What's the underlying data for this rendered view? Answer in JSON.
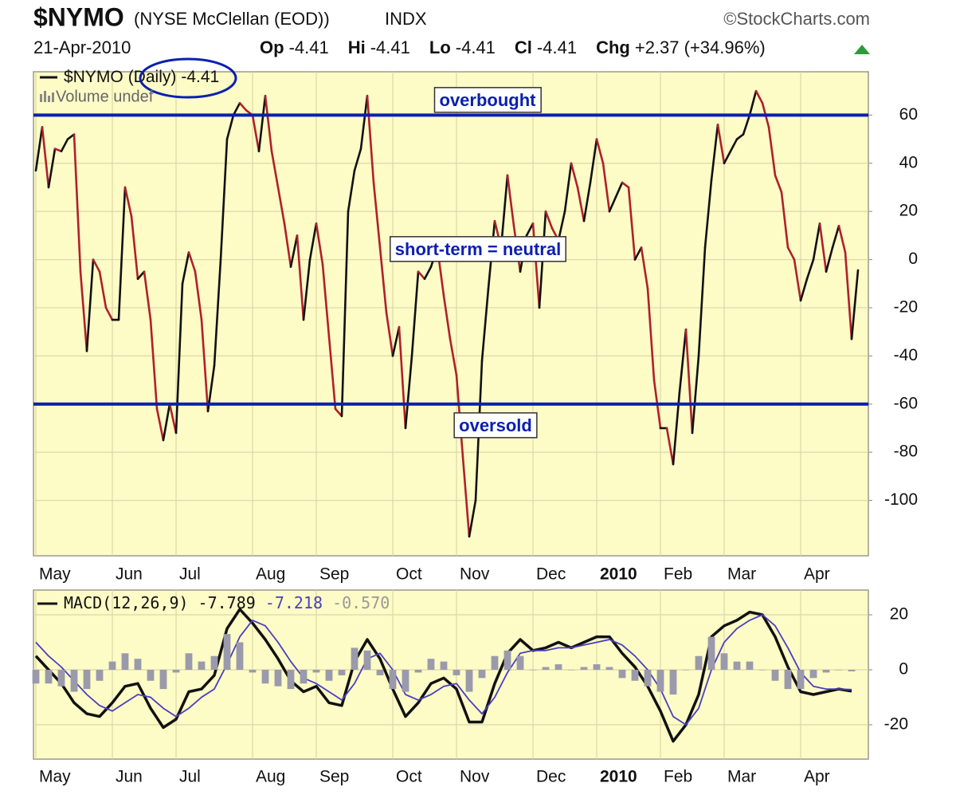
{
  "header": {
    "symbol": "$NYMO",
    "name": "(NYSE McClellan (EOD))",
    "exchange": "INDX",
    "source": "©StockCharts.com",
    "date": "21-Apr-2010",
    "quote": [
      {
        "label": "Op",
        "value": "-4.41"
      },
      {
        "label": "Hi",
        "value": "-4.41"
      },
      {
        "label": "Lo",
        "value": "-4.41"
      },
      {
        "label": "Cl",
        "value": "-4.41"
      },
      {
        "label": "Chg",
        "value": "+2.37 (+34.96%)"
      }
    ]
  },
  "chart_data": [
    {
      "type": "line",
      "categories": [
        "May",
        null,
        null,
        null,
        null,
        null,
        null,
        null,
        null,
        null,
        null,
        null,
        "Jun",
        null,
        null,
        null,
        null,
        null,
        null,
        null,
        null,
        null,
        "Jul",
        null,
        null,
        null,
        null,
        null,
        null,
        null,
        null,
        null,
        null,
        null,
        "Aug",
        null,
        null,
        null,
        null,
        null,
        null,
        null,
        null,
        null,
        "Sep",
        null,
        null,
        null,
        null,
        null,
        null,
        null,
        null,
        null,
        null,
        null,
        "Oct",
        null,
        null,
        null,
        null,
        null,
        null,
        null,
        null,
        null,
        "Nov",
        null,
        null,
        null,
        null,
        null,
        null,
        null,
        null,
        null,
        null,
        null,
        "Dec",
        null,
        null,
        null,
        null,
        null,
        null,
        null,
        null,
        null,
        "2010",
        null,
        null,
        null,
        null,
        null,
        null,
        null,
        null,
        null,
        "Feb",
        null,
        null,
        null,
        null,
        null,
        null,
        null,
        null,
        null,
        "Mar",
        null,
        null,
        null,
        null,
        null,
        null,
        null,
        null,
        null,
        null,
        null,
        "Apr",
        null,
        null,
        null,
        null,
        null,
        null,
        null,
        null,
        null
      ],
      "series": [
        {
          "name": "$NYMO",
          "period": "(Daily)",
          "up_color": "#111111",
          "down_color": "#b0202a",
          "values": [
            37,
            55,
            30,
            46,
            45,
            50,
            52,
            -5,
            -38,
            0,
            -5,
            -20,
            -25,
            -25,
            30,
            18,
            -8,
            -5,
            -25,
            -62,
            -75,
            -60,
            -72,
            -10,
            3,
            -5,
            -25,
            -63,
            -44,
            0,
            50,
            60,
            65,
            62,
            60,
            45,
            68,
            45,
            30,
            15,
            -3,
            10,
            -25,
            0,
            15,
            -2,
            -32,
            -62,
            -65,
            20,
            37,
            46,
            68,
            32,
            5,
            -22,
            -40,
            -28,
            -70,
            -40,
            -5,
            -8,
            -3,
            5,
            -15,
            -33,
            -48,
            -82,
            -115,
            -100,
            -42,
            -12,
            16,
            5,
            35,
            14,
            -5,
            10,
            15,
            -20,
            20,
            13,
            8,
            20,
            40,
            30,
            16,
            32,
            50,
            40,
            20,
            26,
            32,
            30,
            0,
            5,
            -12,
            -50,
            -70,
            -70,
            -85,
            -55,
            -29,
            -72,
            -40,
            5,
            33,
            56,
            40,
            45,
            50,
            52,
            60,
            70,
            65,
            55,
            35,
            28,
            5,
            0,
            -17,
            -8,
            0,
            15,
            -5,
            5,
            14,
            3,
            -33,
            -4.41
          ]
        }
      ],
      "volume_note": "Volume undef",
      "ylim": [
        -123,
        78
      ],
      "yticks": [
        -100,
        -80,
        -60,
        -40,
        -20,
        0,
        20,
        40,
        60
      ],
      "grid": true,
      "hlines": [
        {
          "value": 60,
          "color": "#0a1fb0"
        },
        {
          "value": -60,
          "color": "#0a1fb0"
        }
      ],
      "annotations": [
        {
          "text": "overbought"
        },
        {
          "text": "short-term = neutral"
        },
        {
          "text": "oversold"
        }
      ]
    },
    {
      "type": "line",
      "categories": [
        "May",
        null,
        null,
        null,
        null,
        null,
        "Jun",
        null,
        null,
        null,
        null,
        "Jul",
        null,
        null,
        null,
        null,
        null,
        "Aug",
        null,
        null,
        null,
        null,
        "Sep",
        null,
        null,
        null,
        null,
        null,
        "Oct",
        null,
        null,
        null,
        null,
        "Nov",
        null,
        null,
        null,
        null,
        null,
        "Dec",
        null,
        null,
        null,
        null,
        "2010",
        null,
        null,
        null,
        null,
        "Feb",
        null,
        null,
        null,
        null,
        "Mar",
        null,
        null,
        null,
        null,
        null,
        "Apr",
        null,
        null,
        null,
        null
      ],
      "series": [
        {
          "name": "MACD(12,26,9)",
          "style": "line",
          "color": "#111111",
          "width": 3.5,
          "values": [
            5,
            0,
            -5,
            -12,
            -16,
            -17,
            -12,
            -6,
            -5,
            -14,
            -21,
            -18,
            -8,
            -7,
            -2,
            15,
            22,
            17,
            11,
            4,
            -4,
            -8,
            -6,
            -12,
            -13,
            3,
            11,
            4,
            -7,
            -17,
            -12,
            -5,
            -3,
            -7,
            -19,
            -19,
            -5,
            6,
            11,
            7,
            8,
            10,
            8,
            10,
            12,
            12,
            6,
            1,
            -6,
            -15,
            -26,
            -20,
            -9,
            12,
            16,
            18,
            21,
            20,
            12,
            1,
            -8,
            -9,
            -8,
            -7,
            -7.789
          ]
        },
        {
          "style": "line",
          "color": "#4a3fc0",
          "width": 1.8,
          "values": [
            10,
            5,
            1,
            -4,
            -9,
            -13,
            -15,
            -12,
            -9,
            -10,
            -14,
            -17,
            -14,
            -10,
            -7,
            2,
            12,
            18,
            16,
            10,
            3,
            -3,
            -5,
            -8,
            -11,
            -5,
            4,
            6,
            0,
            -9,
            -11,
            -9,
            -6,
            -5,
            -11,
            -16,
            -10,
            -1,
            6,
            7,
            7,
            8,
            8,
            9,
            10,
            11,
            9,
            5,
            0,
            -7,
            -17,
            -20,
            -14,
            0,
            10,
            15,
            18,
            20,
            16,
            8,
            -1,
            -6,
            -7,
            -7,
            -7.218
          ]
        },
        {
          "style": "bar",
          "color": "#9a9aac",
          "legend_label": "-0.570",
          "values": [
            -5,
            -5,
            -6,
            -8,
            -7,
            -4,
            3,
            6,
            4,
            -4,
            -7,
            -1,
            6,
            3,
            5,
            13,
            10,
            -1,
            -5,
            -6,
            -7,
            -5,
            -1,
            -4,
            -2,
            8,
            7,
            -2,
            -7,
            -8,
            -1,
            4,
            3,
            -2,
            -8,
            -3,
            5,
            7,
            5,
            0,
            1,
            2,
            0,
            1,
            2,
            1,
            -3,
            -4,
            -6,
            -8,
            -9,
            0,
            5,
            12,
            6,
            3,
            3,
            0,
            -4,
            -7,
            -7,
            -3,
            -1,
            0,
            -0.57
          ]
        }
      ],
      "ylim": [
        -32.5,
        29
      ],
      "yticks": [
        -20,
        0,
        20
      ],
      "grid": true
    }
  ]
}
